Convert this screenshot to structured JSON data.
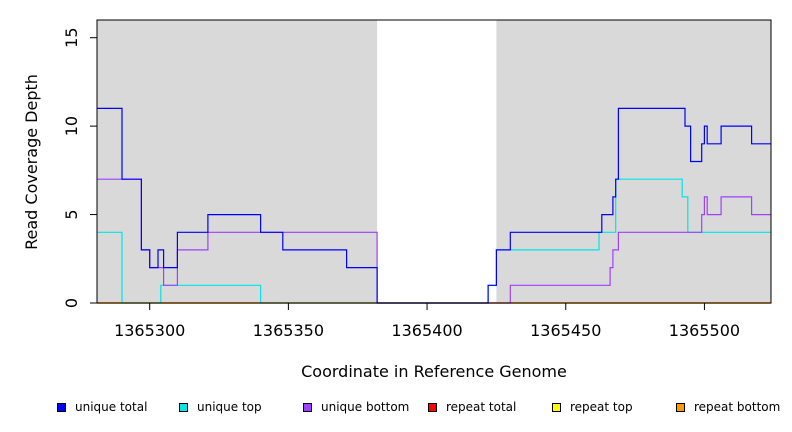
{
  "chart_data": {
    "type": "line",
    "title": "",
    "xlabel": "Coordinate in Reference Genome",
    "ylabel": "Read Coverage Depth",
    "xlim": [
      1365281,
      1365524
    ],
    "ylim": [
      0,
      16
    ],
    "x_ticks": [
      1365300,
      1365350,
      1365400,
      1365450,
      1365500
    ],
    "y_ticks": [
      0,
      5,
      10,
      15
    ],
    "shaded_regions": [
      [
        1365281,
        1365382
      ],
      [
        1365425,
        1365524
      ]
    ],
    "grid": false,
    "legend_position": "bottom",
    "series": [
      {
        "name": "unique total",
        "color": "#0000ff",
        "step": true,
        "points": [
          [
            1365281,
            11
          ],
          [
            1365290,
            7
          ],
          [
            1365297,
            3
          ],
          [
            1365300,
            2
          ],
          [
            1365303,
            3
          ],
          [
            1365305,
            2
          ],
          [
            1365310,
            4
          ],
          [
            1365321,
            5
          ],
          [
            1365340,
            4
          ],
          [
            1365348,
            3
          ],
          [
            1365371,
            2
          ],
          [
            1365382,
            0
          ],
          [
            1365422,
            1
          ],
          [
            1365425,
            3
          ],
          [
            1365430,
            4
          ],
          [
            1365463,
            5
          ],
          [
            1365467,
            6
          ],
          [
            1365468,
            7
          ],
          [
            1365469,
            11
          ],
          [
            1365493,
            10
          ],
          [
            1365495,
            8
          ],
          [
            1365499,
            9
          ],
          [
            1365500,
            10
          ],
          [
            1365501,
            9
          ],
          [
            1365506,
            10
          ],
          [
            1365517,
            9
          ],
          [
            1365524,
            9
          ]
        ]
      },
      {
        "name": "unique top",
        "color": "#00e5e5",
        "step": true,
        "points": [
          [
            1365281,
            4
          ],
          [
            1365290,
            0
          ],
          [
            1365304,
            1
          ],
          [
            1365340,
            0
          ],
          [
            1365382,
            0
          ],
          [
            1365422,
            1
          ],
          [
            1365425,
            3
          ],
          [
            1365462,
            4
          ],
          [
            1365468,
            7
          ],
          [
            1365492,
            6
          ],
          [
            1365494,
            4
          ],
          [
            1365524,
            4
          ]
        ]
      },
      {
        "name": "unique bottom",
        "color": "#a040ff",
        "step": true,
        "points": [
          [
            1365281,
            7
          ],
          [
            1365297,
            3
          ],
          [
            1365300,
            2
          ],
          [
            1365305,
            1
          ],
          [
            1365310,
            3
          ],
          [
            1365321,
            4
          ],
          [
            1365340,
            4
          ],
          [
            1365382,
            0
          ],
          [
            1365430,
            1
          ],
          [
            1365466,
            2
          ],
          [
            1365467,
            3
          ],
          [
            1365469,
            4
          ],
          [
            1365499,
            5
          ],
          [
            1365500,
            6
          ],
          [
            1365501,
            5
          ],
          [
            1365506,
            6
          ],
          [
            1365517,
            5
          ],
          [
            1365524,
            5
          ]
        ]
      },
      {
        "name": "repeat total",
        "color": "#ff0000",
        "step": true,
        "points": [
          [
            1365281,
            0
          ],
          [
            1365524,
            0
          ]
        ]
      },
      {
        "name": "repeat top",
        "color": "#ffff00",
        "step": true,
        "points": [
          [
            1365281,
            0
          ],
          [
            1365524,
            0
          ]
        ]
      },
      {
        "name": "repeat bottom",
        "color": "#ff9900",
        "step": true,
        "points": [
          [
            1365281,
            0
          ],
          [
            1365524,
            0
          ]
        ]
      }
    ]
  }
}
